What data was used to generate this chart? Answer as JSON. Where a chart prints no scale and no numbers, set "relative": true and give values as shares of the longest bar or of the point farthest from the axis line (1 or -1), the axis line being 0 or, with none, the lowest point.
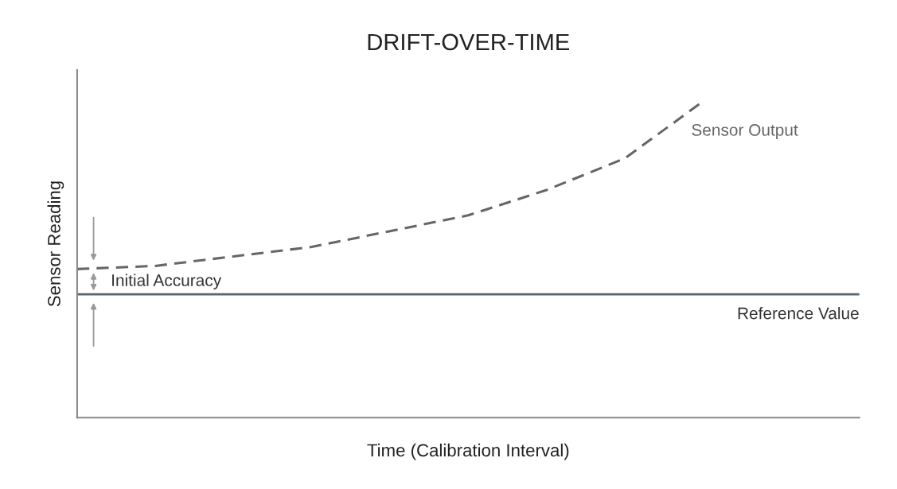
{
  "chart_data": {
    "type": "line",
    "title": "DRIFT-OVER-TIME",
    "xlabel": "Time (Calibration Interval)",
    "ylabel": "Sensor Reading",
    "relative": true,
    "categories": [
      null,
      null,
      null,
      null,
      null,
      null,
      null,
      null,
      null,
      null,
      null
    ],
    "series": [
      {
        "name": "Sensor Output",
        "color": "#666666",
        "line_style": "dashed",
        "values": [
          0.47,
          0.48,
          0.51,
          0.54,
          0.59,
          0.64,
          0.72,
          0.82,
          1,
          null,
          null
        ]
      }
    ],
    "ref_lines": [
      {
        "axis": "y",
        "value": 0.39,
        "label": "Reference Value",
        "color": "#5a6470",
        "line_style": "solid"
      }
    ],
    "annotations": [
      "Initial Accuracy"
    ],
    "grid": false,
    "legend": false,
    "marker": "none"
  }
}
